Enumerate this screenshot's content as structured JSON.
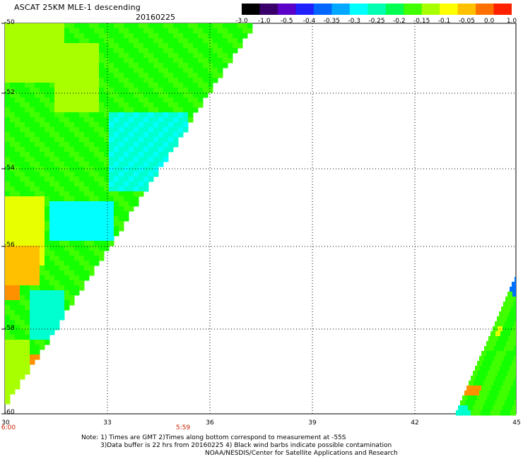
{
  "title": "ASCAT 25KM MLE-1 descending",
  "date": "20160225",
  "colorbar": {
    "labels": [
      "-3.0",
      "-1.0",
      "-0.5",
      "-0.4",
      "-0.35",
      "-0.3",
      "-0.25",
      "-0.2",
      "-0.15",
      "-0.1",
      "-0.05",
      "0.0",
      "1.0"
    ],
    "colors": [
      "#000000",
      "#3a006a",
      "#5a00c8",
      "#2020ff",
      "#0066ff",
      "#00a8ff",
      "#00ffff",
      "#00ffb0",
      "#00ff50",
      "#40ff00",
      "#a8ff00",
      "#ffff00",
      "#ffc000",
      "#ff7000",
      "#ff2000"
    ]
  },
  "axes": {
    "lat_labels": [
      "-50",
      "-52",
      "-54",
      "-56",
      "-58",
      "-60"
    ],
    "lon_labels": [
      "30",
      "33",
      "36",
      "39",
      "42",
      "45"
    ],
    "time_labels": [
      "6:00",
      "5:59"
    ]
  },
  "notes": [
    "Note: 1) Times are GMT 2)Times along bottom correspond to measurement at -55S",
    "3)Data buffer is 22 hrs from 20160225 4) Black wind barbs indicate possible contamination",
    "NOAA/NESDIS/Center for Satellite Applications and Research"
  ],
  "swath_colors": {
    "green": "#14ff00",
    "lightgreen": "#40ff00",
    "yellowgreen": "#a8ff00",
    "yellow": "#e8ff00",
    "cyan": "#00ffd0",
    "aqua": "#00ffff",
    "orange": "#ff9000",
    "gold": "#ffc000",
    "blue": "#0070ff"
  }
}
